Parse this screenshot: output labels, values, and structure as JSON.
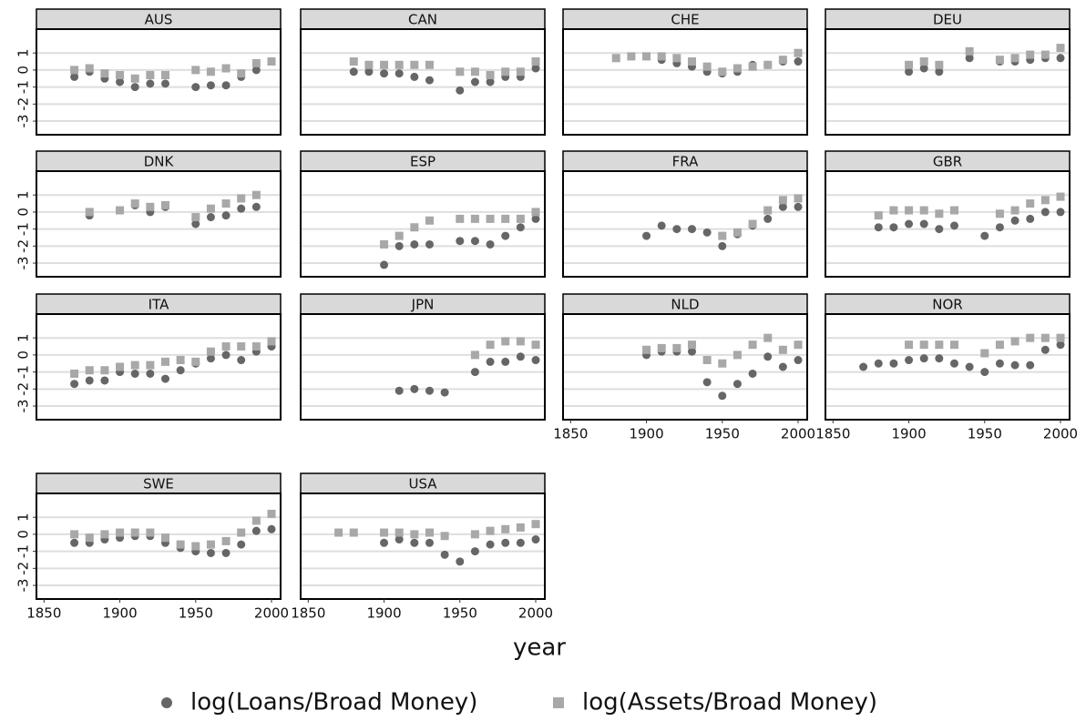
{
  "chart_data": {
    "type": "scatter",
    "x_label": "year",
    "x": [
      1870,
      1880,
      1890,
      1900,
      1910,
      1920,
      1930,
      1940,
      1950,
      1960,
      1970,
      1980,
      1990,
      2000
    ],
    "xlim": [
      1845,
      2006
    ],
    "xticks": [
      1850,
      1900,
      1950,
      2000
    ],
    "ylim": [
      -3.8,
      2.4
    ],
    "yticks": [
      -3,
      -2,
      -1,
      0,
      1
    ],
    "grid": true,
    "legend": "bottom",
    "series": [
      {
        "name": "log(Loans/Broad Money)",
        "color": "#666666",
        "marker": "circle"
      },
      {
        "name": "log(Assets/Broad Money)",
        "color": "#a8a8a8",
        "marker": "square"
      }
    ],
    "panels": [
      {
        "title": "AUS",
        "series": [
          {
            "values": [
              -0.4,
              -0.1,
              -0.5,
              -0.7,
              -1.0,
              -0.8,
              -0.8,
              null,
              -1.0,
              -0.9,
              -0.9,
              -0.4,
              0.0,
              null
            ]
          },
          {
            "values": [
              0.0,
              0.1,
              -0.2,
              -0.3,
              -0.5,
              -0.3,
              -0.3,
              null,
              0.0,
              -0.1,
              0.1,
              -0.2,
              0.4,
              0.5
            ]
          }
        ]
      },
      {
        "title": "CAN",
        "series": [
          {
            "values": [
              null,
              -0.1,
              -0.1,
              -0.2,
              -0.2,
              -0.4,
              -0.6,
              null,
              -1.2,
              -0.7,
              -0.7,
              -0.4,
              -0.4,
              0.1
            ]
          },
          {
            "values": [
              null,
              0.5,
              0.3,
              0.3,
              0.3,
              0.3,
              0.3,
              null,
              -0.1,
              -0.1,
              -0.3,
              -0.1,
              -0.1,
              0.5
            ]
          }
        ]
      },
      {
        "title": "CHE",
        "series": [
          {
            "values": [
              null,
              null,
              null,
              null,
              0.6,
              0.4,
              0.2,
              -0.1,
              -0.2,
              -0.1,
              0.3,
              0.3,
              0.5,
              0.5
            ]
          },
          {
            "values": [
              null,
              0.7,
              0.8,
              0.8,
              0.8,
              0.7,
              0.5,
              0.2,
              -0.1,
              0.1,
              0.2,
              0.3,
              0.6,
              1.0
            ]
          }
        ]
      },
      {
        "title": "DEU",
        "series": [
          {
            "values": [
              null,
              null,
              null,
              -0.1,
              0.1,
              -0.1,
              null,
              0.7,
              null,
              0.5,
              0.5,
              0.6,
              0.7,
              0.7
            ]
          },
          {
            "values": [
              null,
              null,
              null,
              0.3,
              0.5,
              0.3,
              null,
              1.1,
              null,
              0.6,
              0.7,
              0.9,
              0.9,
              1.3
            ]
          }
        ]
      },
      {
        "title": "DNK",
        "series": [
          {
            "values": [
              null,
              -0.2,
              null,
              0.1,
              0.4,
              0.0,
              0.3,
              null,
              -0.7,
              -0.3,
              -0.2,
              0.2,
              0.3,
              null
            ]
          },
          {
            "values": [
              null,
              0.0,
              null,
              0.1,
              0.5,
              0.3,
              0.4,
              null,
              -0.3,
              0.2,
              0.5,
              0.8,
              1.0,
              null
            ]
          }
        ]
      },
      {
        "title": "ESP",
        "series": [
          {
            "values": [
              null,
              null,
              null,
              -3.1,
              -2.0,
              -1.9,
              -1.9,
              null,
              -1.7,
              -1.7,
              -1.9,
              -1.4,
              -0.9,
              -0.4
            ]
          },
          {
            "values": [
              null,
              null,
              null,
              -1.9,
              -1.4,
              -0.9,
              -0.5,
              null,
              -0.4,
              -0.4,
              -0.4,
              -0.4,
              -0.4,
              0.0
            ]
          }
        ]
      },
      {
        "title": "FRA",
        "series": [
          {
            "values": [
              null,
              null,
              null,
              -1.4,
              -0.8,
              -1.0,
              -1.0,
              -1.2,
              -2.0,
              -1.3,
              -0.8,
              -0.4,
              0.3,
              0.3
            ]
          },
          {
            "values": [
              null,
              null,
              null,
              null,
              null,
              null,
              null,
              null,
              -1.4,
              -1.2,
              -0.7,
              0.1,
              0.7,
              0.8
            ]
          }
        ]
      },
      {
        "title": "GBR",
        "series": [
          {
            "values": [
              null,
              -0.9,
              -0.9,
              -0.7,
              -0.7,
              -1.0,
              -0.8,
              null,
              -1.4,
              -0.9,
              -0.5,
              -0.4,
              0.0,
              0.0
            ]
          },
          {
            "values": [
              null,
              -0.2,
              0.1,
              0.1,
              0.1,
              -0.1,
              0.1,
              null,
              null,
              -0.1,
              0.1,
              0.5,
              0.7,
              0.9
            ]
          }
        ]
      },
      {
        "title": "ITA",
        "series": [
          {
            "values": [
              -1.7,
              -1.5,
              -1.5,
              -1.0,
              -1.1,
              -1.1,
              -1.4,
              -0.9,
              -0.5,
              -0.2,
              0.0,
              -0.3,
              0.2,
              0.5
            ]
          },
          {
            "values": [
              -1.1,
              -0.9,
              -0.9,
              -0.7,
              -0.6,
              -0.6,
              -0.4,
              -0.3,
              -0.4,
              0.2,
              0.5,
              0.5,
              0.5,
              0.8
            ]
          }
        ]
      },
      {
        "title": "JPN",
        "series": [
          {
            "values": [
              null,
              null,
              null,
              null,
              -2.1,
              -2.0,
              -2.1,
              -2.2,
              null,
              -1.0,
              -0.4,
              -0.4,
              -0.1,
              -0.3
            ]
          },
          {
            "values": [
              null,
              null,
              null,
              null,
              null,
              null,
              null,
              null,
              null,
              0.0,
              0.6,
              0.8,
              0.8,
              0.6
            ]
          }
        ]
      },
      {
        "title": "NLD",
        "series": [
          {
            "values": [
              null,
              null,
              null,
              0.0,
              0.2,
              0.2,
              0.2,
              -1.6,
              -2.4,
              -1.7,
              -1.1,
              -0.1,
              -0.7,
              -0.3
            ]
          },
          {
            "values": [
              null,
              null,
              null,
              0.3,
              0.4,
              0.4,
              0.6,
              -0.3,
              -0.5,
              0.0,
              0.6,
              1.0,
              0.3,
              0.6
            ]
          }
        ]
      },
      {
        "title": "NOR",
        "series": [
          {
            "values": [
              -0.7,
              -0.5,
              -0.5,
              -0.3,
              -0.2,
              -0.2,
              -0.5,
              -0.7,
              -1.0,
              -0.5,
              -0.6,
              -0.6,
              0.3,
              0.6
            ]
          },
          {
            "values": [
              null,
              null,
              null,
              0.6,
              0.6,
              0.6,
              0.6,
              null,
              0.1,
              0.6,
              0.8,
              1.0,
              1.0,
              1.0
            ]
          }
        ]
      },
      {
        "title": "SWE",
        "series": [
          {
            "values": [
              -0.5,
              -0.5,
              -0.3,
              -0.2,
              -0.1,
              -0.1,
              -0.5,
              -0.8,
              -1.0,
              -1.1,
              -1.1,
              -0.6,
              0.2,
              0.3
            ]
          },
          {
            "values": [
              0.0,
              -0.2,
              0.0,
              0.1,
              0.1,
              0.1,
              -0.2,
              -0.6,
              -0.7,
              -0.6,
              -0.4,
              0.1,
              0.8,
              1.2
            ]
          }
        ]
      },
      {
        "title": "USA",
        "series": [
          {
            "values": [
              null,
              null,
              null,
              -0.5,
              -0.3,
              -0.5,
              -0.5,
              -1.2,
              -1.6,
              -1.0,
              -0.6,
              -0.5,
              -0.5,
              -0.3
            ]
          },
          {
            "values": [
              0.1,
              0.1,
              null,
              0.1,
              0.1,
              0.0,
              0.1,
              -0.1,
              null,
              0.0,
              0.2,
              0.3,
              0.4,
              0.6
            ]
          }
        ]
      }
    ]
  }
}
